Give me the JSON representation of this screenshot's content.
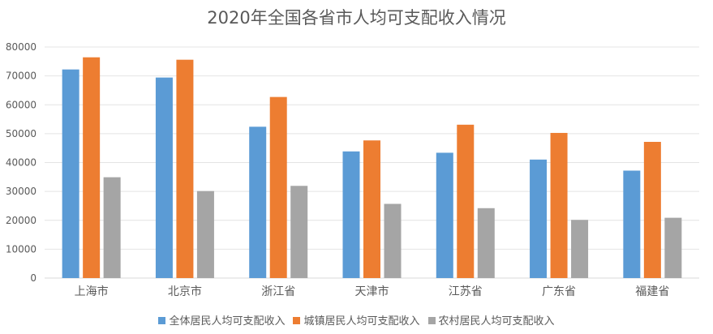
{
  "chart_data": {
    "type": "bar",
    "title": "2020年全国各省市人均可支配收入情况",
    "categories": [
      "上海市",
      "北京市",
      "浙江省",
      "天津市",
      "江苏省",
      "广东省",
      "福建省"
    ],
    "series": [
      {
        "name": "全体居民人均可支配收入",
        "color": "#5B9BD5",
        "values": [
          72232,
          69434,
          52397,
          43854,
          43390,
          41029,
          37202
        ]
      },
      {
        "name": "城镇居民人均可支配收入",
        "color": "#ED7D31",
        "values": [
          76437,
          75602,
          62699,
          47659,
          53102,
          50257,
          47160
        ]
      },
      {
        "name": "农村居民人均可支配收入",
        "color": "#A5A5A5",
        "values": [
          34911,
          30126,
          31930,
          25691,
          24198,
          20143,
          20880
        ]
      }
    ],
    "ylim": [
      0,
      80000
    ],
    "yticks": [
      "0",
      "10000",
      "20000",
      "30000",
      "40000",
      "50000",
      "60000",
      "70000",
      "80000"
    ],
    "grid": true,
    "legend": "bottom"
  }
}
